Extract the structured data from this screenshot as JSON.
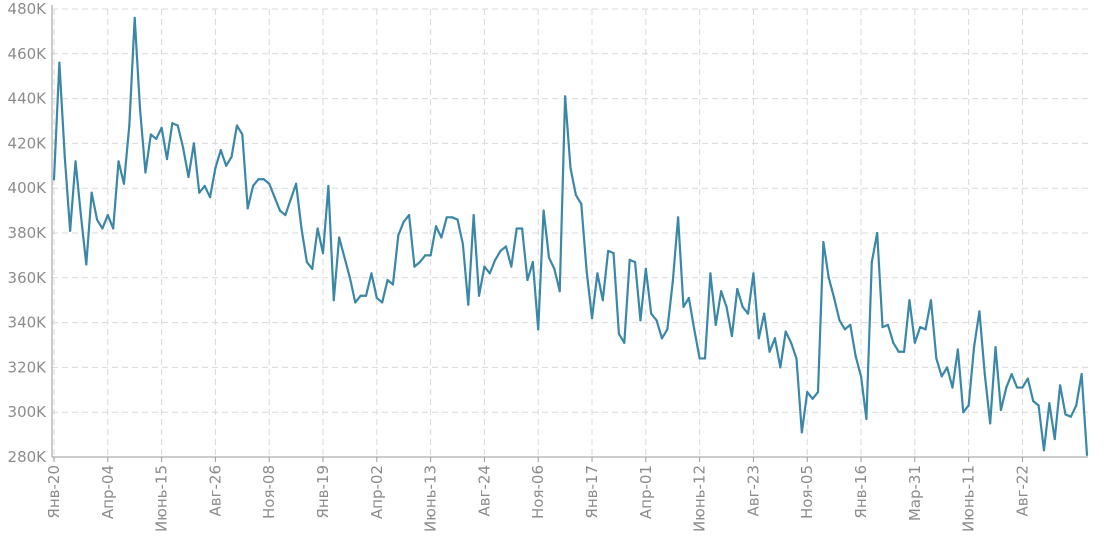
{
  "chart_data": {
    "type": "line",
    "title": "",
    "xlabel": "",
    "ylabel": "",
    "ylim": [
      280000,
      480000
    ],
    "yticks": [
      {
        "value": 280000,
        "label": "280K"
      },
      {
        "value": 300000,
        "label": "300K"
      },
      {
        "value": 320000,
        "label": "320K"
      },
      {
        "value": 340000,
        "label": "340K"
      },
      {
        "value": 360000,
        "label": "360K"
      },
      {
        "value": 380000,
        "label": "380K"
      },
      {
        "value": 400000,
        "label": "400K"
      },
      {
        "value": 420000,
        "label": "420K"
      },
      {
        "value": 440000,
        "label": "440K"
      },
      {
        "value": 460000,
        "label": "460K"
      },
      {
        "value": 480000,
        "label": "480K"
      }
    ],
    "xticks": [
      {
        "index": 0,
        "label": "Янв-20"
      },
      {
        "index": 10,
        "label": "Апр-04"
      },
      {
        "index": 20,
        "label": "Июнь-15"
      },
      {
        "index": 30,
        "label": "Авг-26"
      },
      {
        "index": 40,
        "label": "Ноя-08"
      },
      {
        "index": 50,
        "label": "Янв-19"
      },
      {
        "index": 60,
        "label": "Апр-02"
      },
      {
        "index": 70,
        "label": "Июнь-13"
      },
      {
        "index": 80,
        "label": "Авг-24"
      },
      {
        "index": 90,
        "label": "Ноя-06"
      },
      {
        "index": 100,
        "label": "Янв-17"
      },
      {
        "index": 110,
        "label": "Апр-01"
      },
      {
        "index": 120,
        "label": "Июнь-12"
      },
      {
        "index": 130,
        "label": "Авг-23"
      },
      {
        "index": 140,
        "label": "Ноя-05"
      },
      {
        "index": 150,
        "label": "Янв-16"
      },
      {
        "index": 160,
        "label": "Мар-31"
      },
      {
        "index": 170,
        "label": "Июнь-11"
      },
      {
        "index": 180,
        "label": "Авг-22"
      }
    ],
    "grid": true,
    "line_color": "#3a87a8",
    "series": [
      {
        "values": [
          404000,
          456000,
          414000,
          381000,
          412000,
          388000,
          366000,
          398000,
          386000,
          382000,
          388000,
          382000,
          412000,
          402000,
          428000,
          476000,
          435000,
          407000,
          424000,
          422000,
          427000,
          413000,
          429000,
          428000,
          418000,
          405000,
          420000,
          398000,
          401000,
          396000,
          409000,
          417000,
          410000,
          414000,
          428000,
          424000,
          391000,
          401000,
          404000,
          404000,
          402000,
          396000,
          390000,
          388000,
          395000,
          402000,
          382000,
          367000,
          364000,
          382000,
          371000,
          401000,
          350000,
          378000,
          369000,
          360000,
          349000,
          352000,
          352000,
          362000,
          351000,
          349000,
          359000,
          357000,
          379000,
          385000,
          388000,
          365000,
          367000,
          370000,
          370000,
          383000,
          378000,
          387000,
          387000,
          386000,
          375000,
          348000,
          388000,
          352000,
          365000,
          362000,
          368000,
          372000,
          374000,
          365000,
          382000,
          382000,
          359000,
          367000,
          337000,
          390000,
          369000,
          364000,
          354000,
          441000,
          409000,
          397000,
          393000,
          363000,
          342000,
          362000,
          350000,
          372000,
          371000,
          335000,
          331000,
          368000,
          367000,
          341000,
          364000,
          344000,
          341000,
          333000,
          337000,
          358000,
          387000,
          347000,
          351000,
          337000,
          324000,
          324000,
          362000,
          339000,
          354000,
          347000,
          334000,
          355000,
          347000,
          344000,
          362000,
          333000,
          344000,
          327000,
          333000,
          320000,
          336000,
          331000,
          324000,
          291000,
          309000,
          306000,
          309000,
          376000,
          360000,
          351000,
          341000,
          337000,
          339000,
          325000,
          316000,
          297000,
          367000,
          380000,
          338000,
          339000,
          331000,
          327000,
          327000,
          350000,
          331000,
          338000,
          337000,
          350000,
          324000,
          316000,
          320000,
          311000,
          328000,
          300000,
          303000,
          329000,
          345000,
          317000,
          295000,
          329000,
          301000,
          311000,
          317000,
          311000,
          311000,
          315000,
          305000,
          303000,
          283000,
          304000,
          288000,
          312000,
          299000,
          298000,
          303000,
          317000,
          281000
        ]
      }
    ]
  }
}
